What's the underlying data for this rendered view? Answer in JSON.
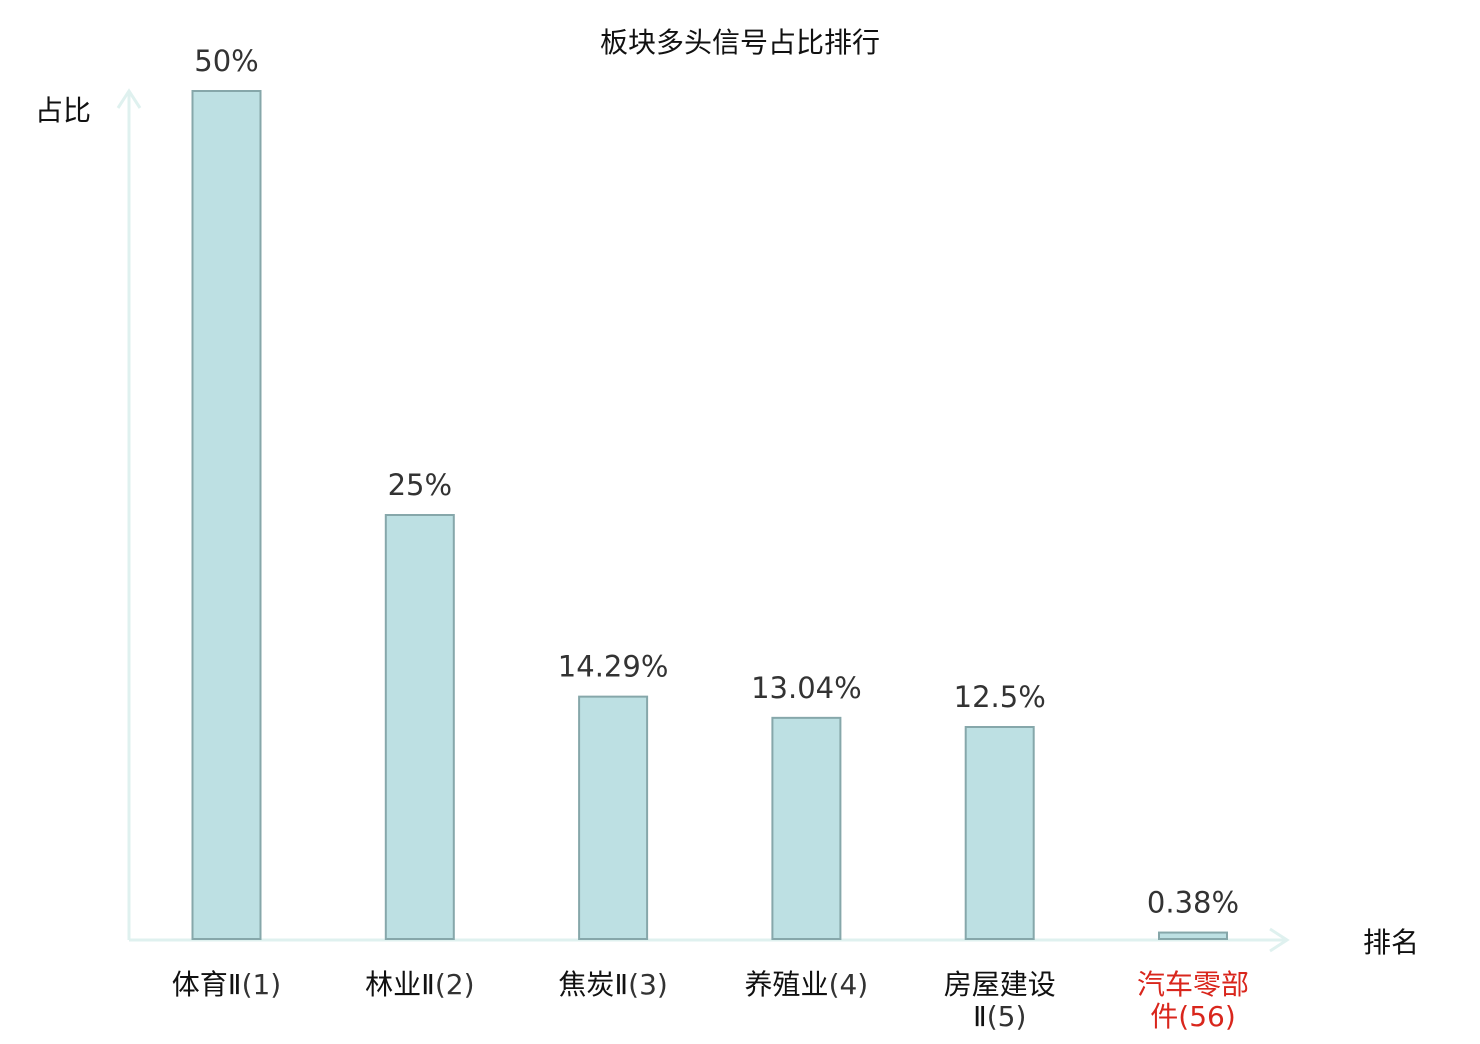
{
  "chart_data": {
    "type": "bar",
    "title": "板块多头信号占比排行",
    "ylabel": "占比",
    "xlabel": "排名",
    "ylim": [
      0,
      50
    ],
    "grid": false,
    "categories": [
      {
        "lines": [
          {
            "name": "体育Ⅱ",
            "rank": "(1)"
          }
        ],
        "highlight": false
      },
      {
        "lines": [
          {
            "name": "林业Ⅱ",
            "rank": "(2)"
          }
        ],
        "highlight": false
      },
      {
        "lines": [
          {
            "name": "焦炭Ⅱ",
            "rank": "(3)"
          }
        ],
        "highlight": false
      },
      {
        "lines": [
          {
            "name": "养殖业",
            "rank": "(4)"
          }
        ],
        "highlight": false
      },
      {
        "lines": [
          {
            "name": "房屋建设",
            "rank": ""
          },
          {
            "name": "Ⅱ",
            "rank": "(5)"
          }
        ],
        "highlight": false
      },
      {
        "lines": [
          {
            "name": "汽车零部",
            "rank": ""
          },
          {
            "name": "件",
            "rank": "(56)"
          }
        ],
        "highlight": true
      }
    ],
    "values": [
      50,
      25,
      14.29,
      13.04,
      12.5,
      0.38
    ],
    "value_labels": [
      "50%",
      "25%",
      "14.29%",
      "13.04%",
      "12.5%",
      "0.38%"
    ],
    "colors": {
      "bar_fill": "#bde0e3",
      "bar_stroke": "#86a7aa",
      "axis": "#dff1ef",
      "highlight_label": "#d9261c"
    }
  }
}
